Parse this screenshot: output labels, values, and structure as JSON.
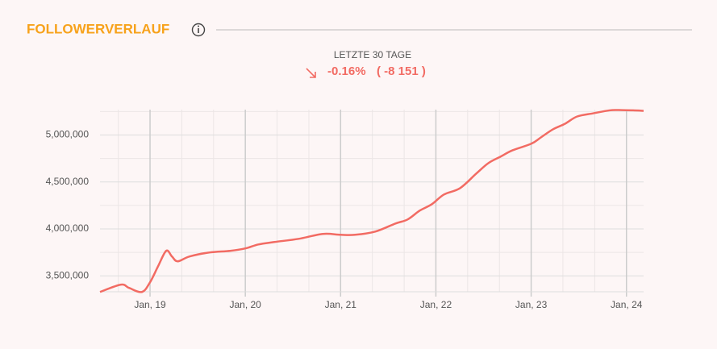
{
  "chart_data": {
    "type": "line",
    "title": "FOLLOWERVERLAUF",
    "period_label": "LETZTE 30 TAGE",
    "change_percent": "-0.16%",
    "change_absolute": "( -8 151 )",
    "x": [
      2018.475,
      2018.695,
      2018.78,
      2018.915,
      2019.0,
      2019.085,
      2019.17,
      2019.23,
      2019.29,
      2019.415,
      2019.627,
      2019.84,
      2020.0,
      2020.136,
      2020.305,
      2020.56,
      2020.814,
      2021.0,
      2021.153,
      2021.364,
      2021.576,
      2021.703,
      2021.83,
      2021.958,
      2022.085,
      2022.254,
      2022.424,
      2022.551,
      2022.678,
      2022.805,
      2023.0,
      2023.102,
      2023.229,
      2023.356,
      2023.483,
      2023.653,
      2023.822,
      2023.95,
      2024.07,
      2024.18
    ],
    "series": [
      {
        "color": "#f26b63",
        "values": [
          3328000,
          3406000,
          3371000,
          3328000,
          3431000,
          3603000,
          3766000,
          3706000,
          3654000,
          3706000,
          3749000,
          3766000,
          3792000,
          3834000,
          3860000,
          3894000,
          3946000,
          3937000,
          3937000,
          3971000,
          4057000,
          4100000,
          4194000,
          4263000,
          4366000,
          4434000,
          4589000,
          4700000,
          4769000,
          4837000,
          4906000,
          4974000,
          5060000,
          5120000,
          5197000,
          5231000,
          5262000,
          5265000,
          5262000,
          5257000
        ]
      }
    ],
    "xlim": [
      2018.475,
      2024.18
    ],
    "ylim": [
      3330000,
      5270000
    ],
    "xticks": [
      {
        "value": 2019,
        "label": "Jan, 19"
      },
      {
        "value": 2020,
        "label": "Jan, 20"
      },
      {
        "value": 2021,
        "label": "Jan, 21"
      },
      {
        "value": 2022,
        "label": "Jan, 22"
      },
      {
        "value": 2023,
        "label": "Jan, 23"
      },
      {
        "value": 2024,
        "label": "Jan, 24"
      }
    ],
    "yticks": [
      {
        "value": 3500000,
        "label": "3,500,000"
      },
      {
        "value": 4000000,
        "label": "4,000,000"
      },
      {
        "value": 4500000,
        "label": "4,500,000"
      },
      {
        "value": 5000000,
        "label": "5,000,000"
      }
    ],
    "xminorticks": [
      2018.667,
      2019.333,
      2019.667,
      2020.333,
      2020.667,
      2021.333,
      2021.667,
      2022.333,
      2022.667,
      2023.333,
      2023.667
    ],
    "yminorticks": [
      3750000,
      4250000,
      4750000,
      5250000
    ],
    "grid": true
  }
}
